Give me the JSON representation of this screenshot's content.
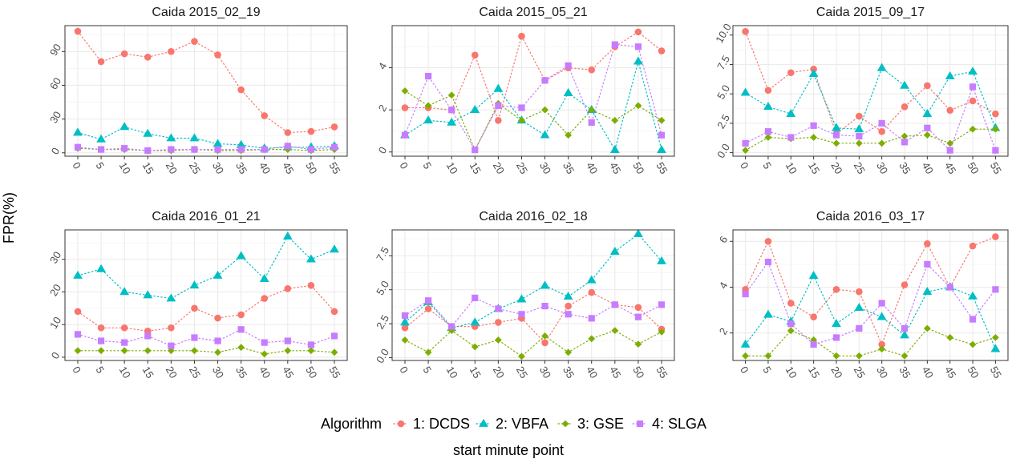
{
  "figure": {
    "ylabel": "FPR(%)",
    "xlabel": "start minute point",
    "legend": {
      "title": "Algorithm",
      "position": "bottom",
      "entries": [
        {
          "label": "1: DCDS",
          "color": "#F8766D",
          "shape": "circle"
        },
        {
          "label": "2: VBFA",
          "color": "#00BFC4",
          "shape": "triangle"
        },
        {
          "label": "3: GSE",
          "color": "#7CAE00",
          "shape": "diamond"
        },
        {
          "label": "4: SLGA",
          "color": "#C77CFF",
          "shape": "square"
        }
      ]
    }
  },
  "chart_data": [
    {
      "type": "line",
      "title": "Caida 2015_02_19",
      "x": [
        0,
        5,
        10,
        15,
        20,
        25,
        30,
        35,
        40,
        45,
        50,
        55
      ],
      "ylim": [
        -3,
        113
      ],
      "yticks": [
        0,
        30,
        60,
        90
      ],
      "yticklabels": [
        "0",
        "30",
        "60",
        "90"
      ],
      "series": [
        {
          "name": "1: DCDS",
          "values": [
            108,
            81,
            88,
            85,
            90,
            99,
            87,
            56,
            33,
            18,
            19,
            23
          ]
        },
        {
          "name": "2: VBFA",
          "values": [
            18,
            12,
            23,
            17,
            13,
            13,
            8,
            7,
            4,
            5,
            5,
            6
          ]
        },
        {
          "name": "3: GSE",
          "values": [
            4,
            3,
            3,
            2,
            2,
            3,
            2,
            2,
            3,
            3,
            2,
            3
          ]
        },
        {
          "name": "4: SLGA",
          "values": [
            5,
            3,
            4,
            2,
            3,
            3,
            3,
            3,
            3,
            6,
            3,
            5
          ]
        }
      ]
    },
    {
      "type": "line",
      "title": "Caida 2015_05_21",
      "x": [
        0,
        5,
        10,
        15,
        20,
        25,
        30,
        35,
        40,
        45,
        50,
        55
      ],
      "ylim": [
        -0.2,
        6.0
      ],
      "yticks": [
        0,
        2,
        4
      ],
      "yticklabels": [
        "0",
        "2",
        "4"
      ],
      "series": [
        {
          "name": "1: DCDS",
          "values": [
            2.1,
            2.1,
            2.0,
            4.6,
            1.5,
            5.5,
            3.4,
            4.0,
            3.9,
            5.0,
            5.7,
            4.8
          ]
        },
        {
          "name": "2: VBFA",
          "values": [
            0.8,
            1.5,
            1.4,
            2.0,
            3.0,
            1.5,
            0.8,
            2.8,
            2.0,
            0.1,
            4.3,
            0.1
          ]
        },
        {
          "name": "3: GSE",
          "values": [
            2.9,
            2.2,
            2.7,
            0.1,
            2.3,
            1.5,
            2.0,
            0.8,
            2.0,
            1.5,
            2.2,
            1.5
          ]
        },
        {
          "name": "4: SLGA",
          "values": [
            0.8,
            3.6,
            2.0,
            0.1,
            2.2,
            2.1,
            3.4,
            4.1,
            1.4,
            5.1,
            5.0,
            0.8
          ]
        }
      ]
    },
    {
      "type": "line",
      "title": "Caida 2015_09_17",
      "x": [
        0,
        5,
        10,
        15,
        20,
        25,
        30,
        35,
        40,
        45,
        50,
        55
      ],
      "ylim": [
        -0.3,
        10.8
      ],
      "yticks": [
        0,
        2.5,
        5,
        7.5,
        10
      ],
      "yticklabels": [
        "0.0",
        "2.5",
        "5.0",
        "7.5",
        "10.0"
      ],
      "series": [
        {
          "name": "1: DCDS",
          "values": [
            10.3,
            5.3,
            6.8,
            7.1,
            1.6,
            3.1,
            1.8,
            3.9,
            5.7,
            3.6,
            4.4,
            3.3
          ]
        },
        {
          "name": "2: VBFA",
          "values": [
            5.1,
            3.9,
            3.3,
            6.7,
            2.1,
            2.0,
            7.2,
            5.7,
            3.3,
            6.5,
            6.9,
            2.1
          ]
        },
        {
          "name": "3: GSE",
          "values": [
            0.2,
            1.3,
            1.2,
            1.3,
            0.8,
            0.8,
            0.8,
            1.4,
            1.5,
            0.8,
            2.0,
            2.0
          ]
        },
        {
          "name": "4: SLGA",
          "values": [
            0.8,
            1.8,
            1.3,
            2.3,
            1.5,
            1.4,
            2.5,
            0.9,
            2.1,
            0.2,
            5.6,
            0.2
          ]
        }
      ]
    },
    {
      "type": "line",
      "title": "Caida 2016_01_21",
      "x": [
        0,
        5,
        10,
        15,
        20,
        25,
        30,
        35,
        40,
        45,
        50,
        55
      ],
      "ylim": [
        -1,
        39
      ],
      "yticks": [
        0,
        10,
        20,
        30
      ],
      "yticklabels": [
        "0",
        "10",
        "20",
        "30"
      ],
      "series": [
        {
          "name": "1: DCDS",
          "values": [
            14,
            9,
            9,
            8,
            9,
            15,
            12,
            13,
            18,
            21,
            22,
            14
          ]
        },
        {
          "name": "2: VBFA",
          "values": [
            25,
            27,
            20,
            19,
            18,
            22,
            25,
            31,
            24,
            37,
            30,
            33
          ]
        },
        {
          "name": "3: GSE",
          "values": [
            2,
            2,
            2,
            2,
            2,
            2,
            1.5,
            3,
            1,
            2,
            2,
            1.5
          ]
        },
        {
          "name": "4: SLGA",
          "values": [
            7,
            5,
            4.5,
            6.5,
            3.5,
            6,
            5,
            8.5,
            4.5,
            5,
            3.8,
            6.5
          ]
        }
      ]
    },
    {
      "type": "line",
      "title": "Caida 2016_02_18",
      "x": [
        0,
        5,
        10,
        15,
        20,
        25,
        30,
        35,
        40,
        45,
        50,
        55
      ],
      "ylim": [
        -0.2,
        9.4
      ],
      "yticks": [
        0,
        2.5,
        5,
        7.5
      ],
      "yticklabels": [
        "0.0",
        "2.5",
        "5.0",
        "7.5"
      ],
      "series": [
        {
          "name": "1: DCDS",
          "values": [
            2.2,
            3.6,
            2.3,
            2.3,
            2.6,
            2.9,
            1.1,
            3.8,
            4.8,
            3.9,
            3.7,
            2.1
          ]
        },
        {
          "name": "2: VBFA",
          "values": [
            2.6,
            4.1,
            2.2,
            2.6,
            3.6,
            4.3,
            5.3,
            4.5,
            5.7,
            7.8,
            9.1,
            7.1
          ]
        },
        {
          "name": "3: GSE",
          "values": [
            1.3,
            0.4,
            2.0,
            0.8,
            1.3,
            0.1,
            1.6,
            0.4,
            1.4,
            2.0,
            1.0,
            1.9
          ]
        },
        {
          "name": "4: SLGA",
          "values": [
            3.1,
            4.2,
            2.3,
            4.4,
            3.6,
            3.2,
            3.8,
            3.2,
            2.9,
            3.9,
            3.0,
            3.9
          ]
        }
      ]
    },
    {
      "type": "line",
      "title": "Caida 2016_03_17",
      "x": [
        0,
        5,
        10,
        15,
        20,
        25,
        30,
        35,
        40,
        45,
        50,
        55
      ],
      "ylim": [
        0.8,
        6.5
      ],
      "yticks": [
        2,
        4,
        6
      ],
      "yticklabels": [
        "2",
        "4",
        "6"
      ],
      "series": [
        {
          "name": "1: DCDS",
          "values": [
            3.9,
            6.0,
            3.3,
            2.7,
            3.9,
            3.8,
            1.5,
            4.1,
            5.9,
            4.0,
            5.8,
            6.2
          ]
        },
        {
          "name": "2: VBFA",
          "values": [
            1.5,
            2.8,
            2.5,
            4.5,
            2.4,
            3.1,
            2.7,
            1.9,
            3.8,
            4.0,
            3.6,
            1.3
          ]
        },
        {
          "name": "3: GSE",
          "values": [
            1.0,
            1.0,
            2.1,
            1.7,
            1.0,
            1.0,
            1.3,
            1.0,
            2.2,
            1.8,
            1.5,
            1.8
          ]
        },
        {
          "name": "4: SLGA",
          "values": [
            3.7,
            5.1,
            2.4,
            1.5,
            1.8,
            2.2,
            3.3,
            2.2,
            5.0,
            4.0,
            2.6,
            3.9
          ]
        }
      ]
    }
  ]
}
